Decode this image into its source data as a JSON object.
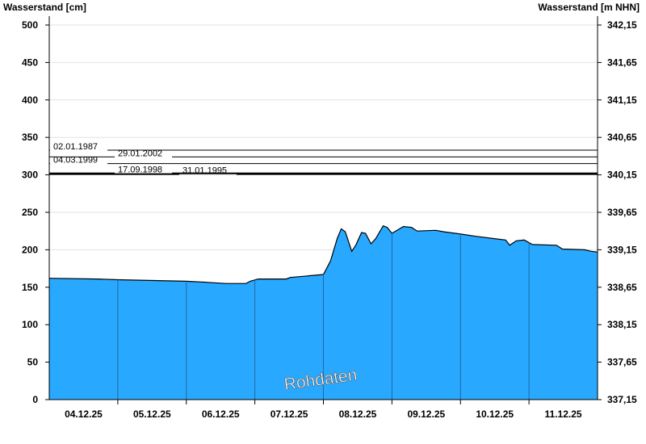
{
  "chart_data": {
    "type": "area",
    "ylabel_left": "Wasserstand [cm]",
    "ylabel_right": "Wasserstand [m NHN]",
    "ylim": [
      0,
      500
    ],
    "yticks_left": [
      0,
      50,
      100,
      150,
      200,
      250,
      300,
      350,
      400,
      450,
      500
    ],
    "yticks_right": [
      "337,15",
      "337,65",
      "338,15",
      "338,65",
      "339,15",
      "339,65",
      "340,15",
      "340,65",
      "341,15",
      "341,65",
      "342,15"
    ],
    "xlim": [
      "04.12.25 00:00",
      "12.12.25 00:00"
    ],
    "xtick_labels": [
      "04.12.25",
      "05.12.25",
      "06.12.25",
      "07.12.25",
      "08.12.25",
      "09.12.25",
      "10.12.25",
      "11.12.25"
    ],
    "grid": "horizontal",
    "fill_color": "#29a8ff",
    "watermark": "Rohdaten",
    "series": [
      {
        "x_hours_label": "hours since 04.12.25 00:00",
        "points": [
          [
            "04.12.25 00:00",
            162
          ],
          [
            "04.12.25 17:00",
            161
          ],
          [
            "05.12.25 00:00",
            160
          ],
          [
            "06.12.25 00:00",
            158
          ],
          [
            "06.12.25 05:20",
            157
          ],
          [
            "06.12.25 13:50",
            155
          ],
          [
            "06.12.25 20:55",
            155
          ],
          [
            "06.12.25 22:20",
            158
          ],
          [
            "07.12.25 01:10",
            161
          ],
          [
            "07.12.25 11:00",
            161
          ],
          [
            "07.12.25 12:25",
            163
          ],
          [
            "08.12.25 00:00",
            167
          ],
          [
            "08.12.25 02:30",
            185
          ],
          [
            "08.12.25 04:50",
            215
          ],
          [
            "08.12.25 06:15",
            228
          ],
          [
            "08.12.25 07:40",
            224
          ],
          [
            "08.12.25 09:55",
            198
          ],
          [
            "08.12.25 11:20",
            206
          ],
          [
            "08.12.25 13:20",
            223
          ],
          [
            "08.12.25 14:45",
            222
          ],
          [
            "08.12.25 16:40",
            208
          ],
          [
            "08.12.25 18:20",
            215
          ],
          [
            "08.12.25 20:55",
            232
          ],
          [
            "08.12.25 22:20",
            230
          ],
          [
            "09.12.25 00:00",
            222
          ],
          [
            "09.12.25 04:00",
            231
          ],
          [
            "09.12.25 06:50",
            230
          ],
          [
            "09.12.25 08:50",
            225
          ],
          [
            "09.12.25 15:20",
            226
          ],
          [
            "09.12.25 18:10",
            224
          ],
          [
            "10.12.25 00:00",
            221
          ],
          [
            "10.12.25 05:20",
            218
          ],
          [
            "10.12.25 11:35",
            215
          ],
          [
            "10.12.25 15:50",
            213
          ],
          [
            "10.12.25 17:15",
            206
          ],
          [
            "10.12.25 19:30",
            212
          ],
          [
            "10.12.25 22:20",
            213
          ],
          [
            "11.12.25 01:10",
            207
          ],
          [
            "11.12.25 09:40",
            206
          ],
          [
            "11.12.25 11:40",
            201
          ],
          [
            "11.12.25 19:30",
            200
          ],
          [
            "11.12.25 21:50",
            198
          ],
          [
            "12.12.25 00:00",
            197
          ]
        ]
      }
    ],
    "reference_lines": [
      {
        "label": "02.01.1987",
        "value": 333
      },
      {
        "label": "29.01.2002",
        "value": 324
      },
      {
        "label": "04.03.1999",
        "value": 315
      },
      {
        "label": "17.09.1998",
        "value": 302
      },
      {
        "label": "31.01.1995",
        "value": 301
      }
    ]
  }
}
